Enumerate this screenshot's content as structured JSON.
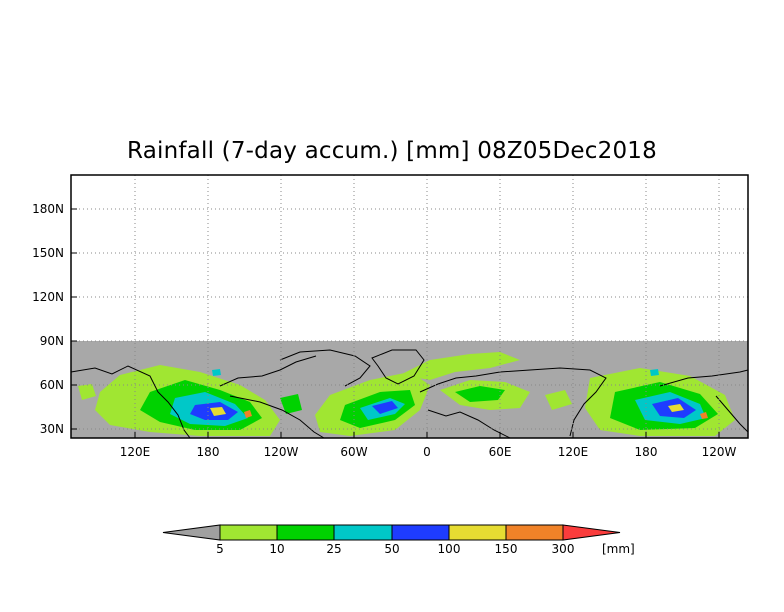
{
  "title": "Rainfall (7-day accum.) [mm] 08Z05Dec2018",
  "y_axis": {
    "ticks": [
      "180N",
      "150N",
      "120N",
      "90N",
      "60N",
      "30N"
    ]
  },
  "x_axis": {
    "ticks": [
      "120E",
      "180",
      "120W",
      "60W",
      "0",
      "60E",
      "120E",
      "180",
      "120W"
    ]
  },
  "colorbar": {
    "labels": [
      "5",
      "10",
      "25",
      "50",
      "100",
      "150",
      "300"
    ],
    "units": "[mm]",
    "colors": {
      "below": "#a0a0a0",
      "bins": [
        "#a0e632",
        "#00d200",
        "#00c8c8",
        "#1e3cff",
        "#e6dc32",
        "#f08228",
        "#fa3c3c"
      ]
    }
  },
  "map": {
    "no_data_color": "#a8a8a8",
    "background": "#ffffff",
    "grid": "dotted"
  }
}
